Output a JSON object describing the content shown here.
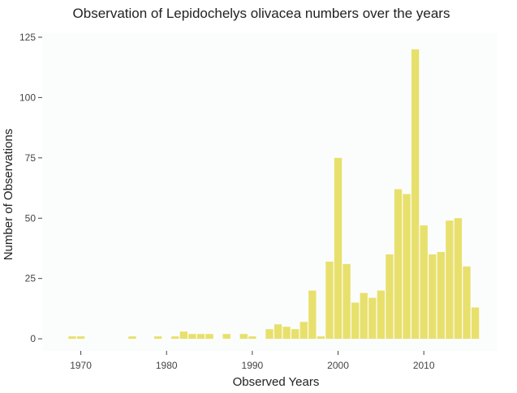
{
  "chart_data": {
    "type": "bar",
    "title": "Observation of Lepidochelys olivacea numbers over the years",
    "xlabel": "Observed Years",
    "ylabel": "Number of Observations",
    "xlim": [
      1965.5,
      2018.5
    ],
    "ylim": [
      -5,
      127
    ],
    "x_ticks": [
      1970,
      1980,
      1990,
      2000,
      2010
    ],
    "y_ticks": [
      0,
      25,
      50,
      75,
      100,
      125
    ],
    "grid": false,
    "legend": "none",
    "bar_color": "#e8e06c",
    "plot_background": "#fbfdfd",
    "x": [
      1969,
      1970,
      1976,
      1979,
      1981,
      1982,
      1983,
      1984,
      1985,
      1987,
      1989,
      1990,
      1992,
      1993,
      1994,
      1995,
      1996,
      1997,
      1998,
      1999,
      2000,
      2001,
      2002,
      2003,
      2004,
      2005,
      2006,
      2007,
      2008,
      2009,
      2010,
      2011,
      2012,
      2013,
      2014,
      2015,
      2016
    ],
    "values": [
      1,
      1,
      1,
      1,
      1,
      3,
      2,
      2,
      2,
      2,
      2,
      1,
      4,
      6,
      5,
      4,
      7,
      20,
      1,
      32,
      75,
      31,
      15,
      19,
      17,
      20,
      35,
      62,
      60,
      120,
      47,
      35,
      36,
      49,
      50,
      30,
      13
    ]
  }
}
